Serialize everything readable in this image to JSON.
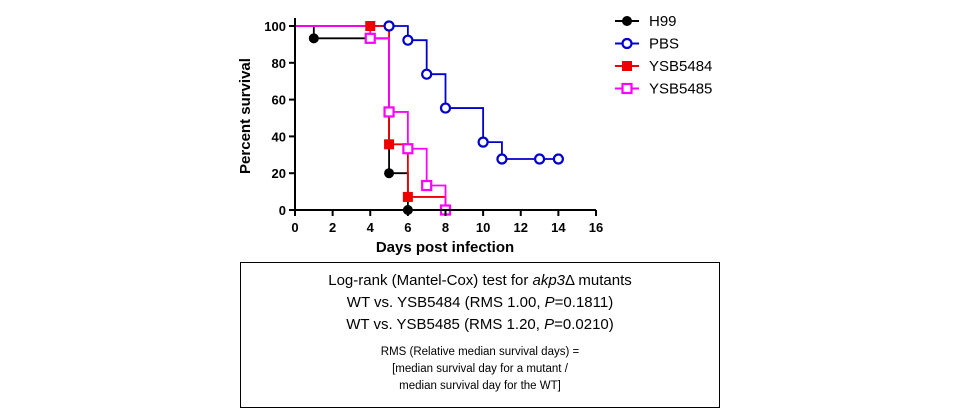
{
  "chart_data": {
    "type": "line",
    "step": true,
    "xlabel": "Days post infection",
    "ylabel": "Percent survival",
    "xlim": [
      0,
      16
    ],
    "ylim": [
      0,
      100
    ],
    "xticks": [
      0,
      2,
      4,
      6,
      8,
      10,
      12,
      14,
      16
    ],
    "yticks": [
      0,
      20,
      40,
      60,
      80,
      100
    ],
    "legend_position": "top-right",
    "series": [
      {
        "name": "H99",
        "color": "#000000",
        "marker": "filled-circle",
        "points": [
          [
            0,
            100
          ],
          [
            1,
            93.3
          ],
          [
            4,
            93.3
          ],
          [
            5,
            20
          ],
          [
            6,
            0
          ]
        ],
        "marked": [
          [
            1,
            93.3
          ],
          [
            5,
            20
          ],
          [
            6,
            0
          ]
        ]
      },
      {
        "name": "PBS",
        "color": "#0000cc",
        "marker": "open-circle",
        "points": [
          [
            0,
            100
          ],
          [
            5,
            100
          ],
          [
            6,
            92.3
          ],
          [
            7,
            73.8
          ],
          [
            8,
            55.4
          ],
          [
            10,
            36.9
          ],
          [
            11,
            27.7
          ],
          [
            14,
            27.7
          ]
        ],
        "marked": [
          [
            5,
            100
          ],
          [
            6,
            92.3
          ],
          [
            7,
            73.8
          ],
          [
            8,
            55.4
          ],
          [
            10,
            36.9
          ],
          [
            11,
            27.7
          ],
          [
            13,
            27.7
          ],
          [
            14,
            27.7
          ]
        ]
      },
      {
        "name": "YSB5484",
        "color": "#ee0000",
        "marker": "filled-square",
        "points": [
          [
            0,
            100
          ],
          [
            4,
            100
          ],
          [
            5,
            35.7
          ],
          [
            6,
            7.1
          ],
          [
            8,
            0
          ]
        ],
        "marked": [
          [
            4,
            100
          ],
          [
            5,
            35.7
          ],
          [
            6,
            7.1
          ],
          [
            8,
            0
          ]
        ]
      },
      {
        "name": "YSB5485",
        "color": "#ff00ff",
        "marker": "open-square",
        "points": [
          [
            0,
            100
          ],
          [
            4,
            93.3
          ],
          [
            5,
            53.3
          ],
          [
            6,
            33.3
          ],
          [
            7,
            13.3
          ],
          [
            8,
            0
          ]
        ],
        "marked": [
          [
            4,
            93.3
          ],
          [
            5,
            53.3
          ],
          [
            6,
            33.3
          ],
          [
            7,
            13.3
          ],
          [
            8,
            0
          ]
        ]
      }
    ]
  },
  "stats_box": {
    "title_prefix": "Log-rank (Mantel-Cox) test for ",
    "title_gene": "akp3",
    "title_suffix": "Δ mutants",
    "comparisons": [
      {
        "prefix": "WT vs. YSB5484 (RMS 1.00, ",
        "p_label": "P",
        "p_value": "=0.1811)"
      },
      {
        "prefix": "WT vs. YSB5485 (RMS 1.20, ",
        "p_label": "P",
        "p_value": "=0.0210)"
      }
    ],
    "note_lines": [
      "RMS (Relative median survival days) =",
      "[median survival day for a mutant  /",
      "median survival day for the WT]"
    ]
  }
}
